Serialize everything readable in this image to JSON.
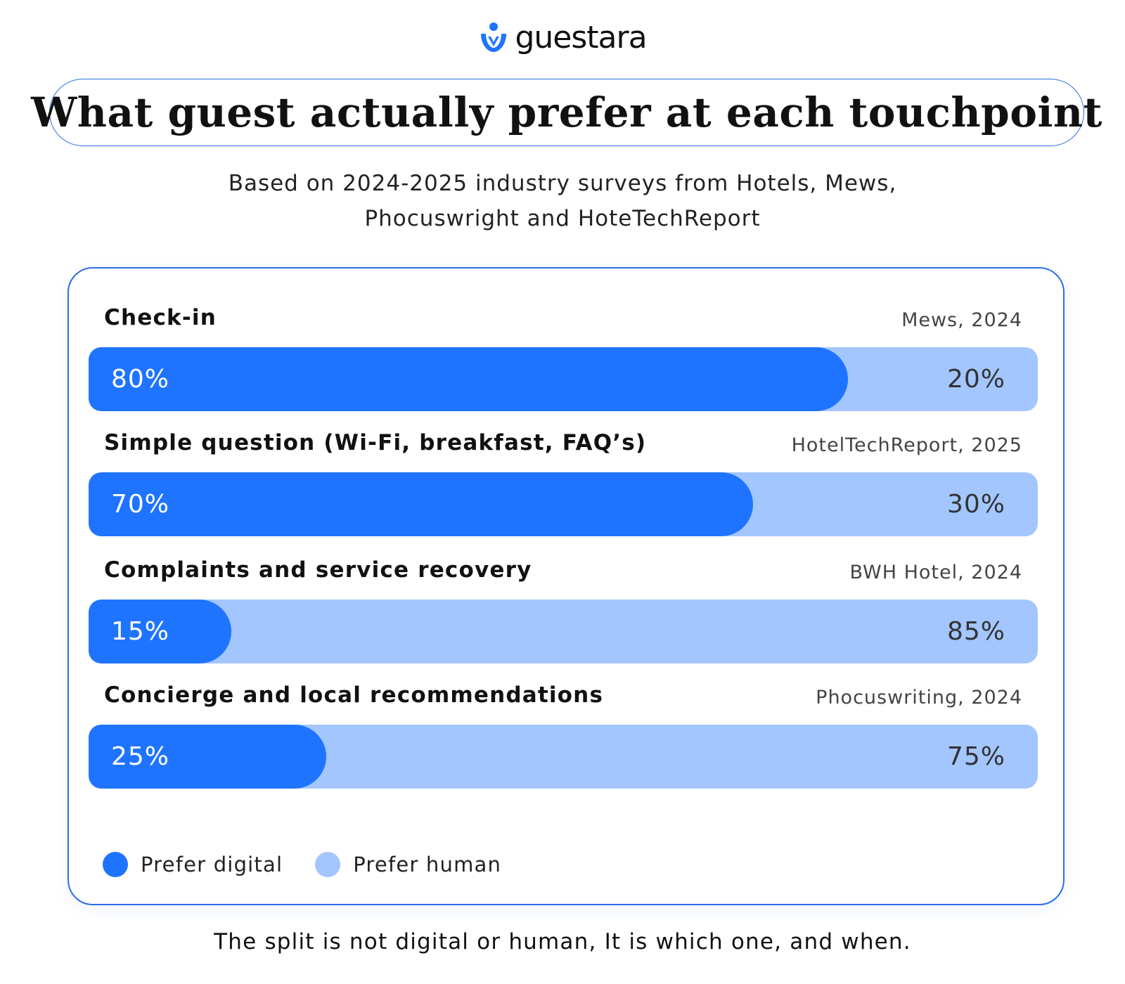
{
  "brand": {
    "name": "guestara",
    "logo_icon": "person-heart-icon",
    "logo_color": "#1f74ff"
  },
  "header": {
    "title": "What guest actually prefer at each touchpoint",
    "subtitle_line1": "Based on 2024-2025 industry surveys from Hotels, Mews,",
    "subtitle_line2": "Phocuswright and HoteTechReport"
  },
  "footer": {
    "text": "The split is not digital or human, It is which one, and when."
  },
  "colors": {
    "digital": "#1f74ff",
    "human": "#a3c6ff",
    "border": "#2c6ee8"
  },
  "chart_data": {
    "type": "bar",
    "orientation": "horizontal",
    "stacked": true,
    "percent_scale": [
      0,
      100
    ],
    "categories": [
      "Check-in",
      "Simple question (Wi-Fi, breakfast, FAQ’s)",
      "Complaints and service recovery",
      "Concierge and local recommendations"
    ],
    "sources": [
      "Mews, 2024",
      "HotelTechReport, 2025",
      "BWH Hotel, 2024",
      "Phocuswriting, 2024"
    ],
    "series": [
      {
        "name": "Prefer digital",
        "values": [
          80,
          70,
          15,
          25
        ],
        "labels": [
          "80%",
          "70%",
          "15%",
          "25%"
        ]
      },
      {
        "name": "Prefer human",
        "values": [
          20,
          30,
          85,
          75
        ],
        "labels": [
          "20%",
          "30%",
          "85%",
          "75%"
        ]
      }
    ],
    "legend_position": "bottom-left",
    "grid": false
  }
}
